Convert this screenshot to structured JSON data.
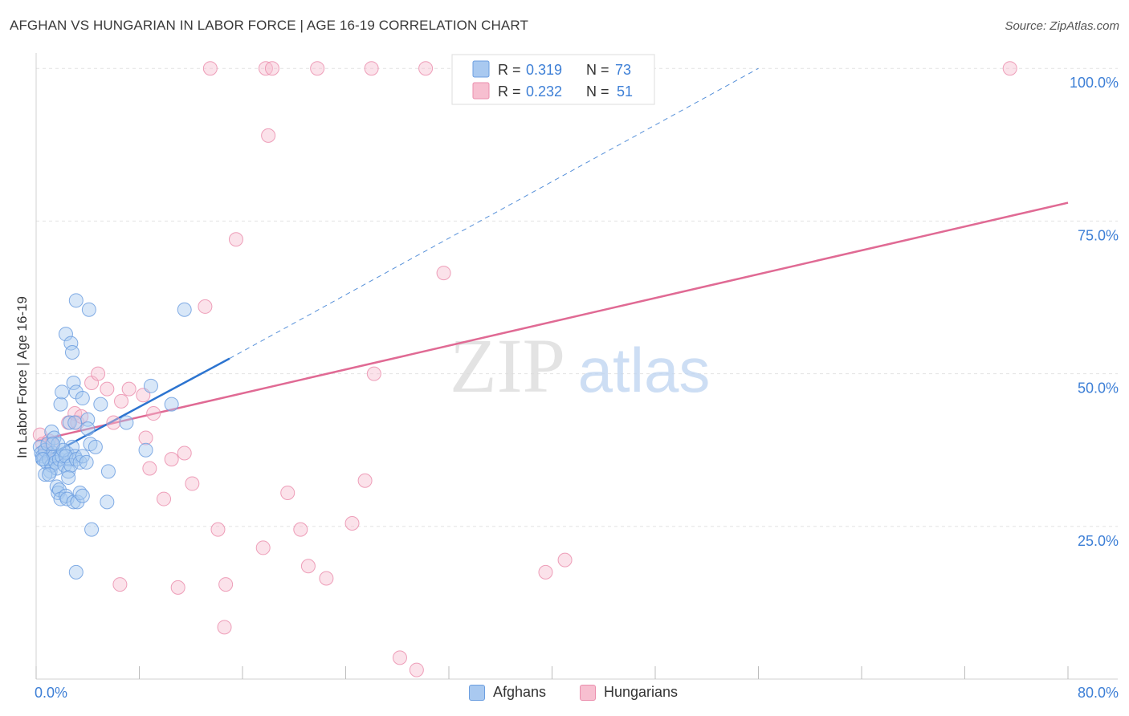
{
  "title": "AFGHAN VS HUNGARIAN IN LABOR FORCE | AGE 16-19 CORRELATION CHART",
  "source": "Source: ZipAtlas.com",
  "watermark": {
    "zip": "ZIP",
    "atlas": "atlas"
  },
  "legend_top": [
    {
      "r_label": "R =",
      "r_value": "0.319",
      "n_label": "N =",
      "n_value": "73"
    },
    {
      "r_label": "R =",
      "r_value": "0.232",
      "n_label": "N =",
      "n_value": "51"
    }
  ],
  "legend_bottom": [
    {
      "label": "Afghans"
    },
    {
      "label": "Hungarians"
    }
  ],
  "colors": {
    "afghan_fill": "#a9c9f0",
    "afghan_stroke": "#6d9fe0",
    "afghan_line": "#2c74d0",
    "hungarian_fill": "#f7bfd0",
    "hungarian_stroke": "#eb8fae",
    "hungarian_line": "#e06a94",
    "tick_blue": "#3d7fd6",
    "grid": "#e3e3e3"
  },
  "chart_data": {
    "type": "scatter",
    "title": "AFGHAN VS HUNGARIAN IN LABOR FORCE | AGE 16-19 CORRELATION CHART",
    "xlabel": "",
    "ylabel": "In Labor Force | Age 16-19",
    "xlim": [
      0,
      80
    ],
    "ylim": [
      0,
      102
    ],
    "x_tick_labels": [
      "0.0%",
      "80.0%"
    ],
    "y_ticks": [
      25,
      50,
      75,
      100
    ],
    "y_tick_labels": [
      "25.0%",
      "50.0%",
      "75.0%",
      "100.0%"
    ],
    "grid": true,
    "series": [
      {
        "name": "Afghans",
        "R": 0.319,
        "N": 73,
        "trend": {
          "x0": 0.0,
          "y0": 35.5,
          "x1": 15.0,
          "y1": 52.5,
          "extend_x1": 56.0,
          "extend_y1": 100.0
        },
        "points": [
          [
            0.3,
            38.0
          ],
          [
            0.4,
            37.0
          ],
          [
            0.5,
            36.5
          ],
          [
            0.6,
            36.0
          ],
          [
            0.7,
            37.5
          ],
          [
            0.8,
            35.5
          ],
          [
            0.9,
            38.5
          ],
          [
            1.0,
            36.0
          ],
          [
            1.1,
            34.0
          ],
          [
            1.2,
            35.0
          ],
          [
            1.3,
            37.0
          ],
          [
            1.4,
            36.5
          ],
          [
            1.5,
            35.5
          ],
          [
            1.6,
            34.5
          ],
          [
            1.8,
            36.0
          ],
          [
            2.0,
            36.5
          ],
          [
            2.2,
            35.0
          ],
          [
            2.4,
            37.0
          ],
          [
            2.6,
            36.0
          ],
          [
            2.8,
            38.0
          ],
          [
            3.0,
            36.5
          ],
          [
            0.5,
            36.0
          ],
          [
            0.7,
            33.5
          ],
          [
            1.0,
            33.5
          ],
          [
            1.2,
            40.5
          ],
          [
            1.4,
            39.5
          ],
          [
            1.7,
            38.5
          ],
          [
            2.1,
            37.5
          ],
          [
            2.3,
            36.5
          ],
          [
            2.5,
            34.0
          ],
          [
            2.7,
            35.0
          ],
          [
            3.1,
            36.0
          ],
          [
            3.4,
            35.5
          ],
          [
            3.6,
            36.5
          ],
          [
            3.9,
            35.5
          ],
          [
            4.2,
            38.5
          ],
          [
            4.6,
            38.0
          ],
          [
            1.9,
            45.0
          ],
          [
            2.0,
            47.0
          ],
          [
            2.9,
            48.5
          ],
          [
            3.1,
            47.0
          ],
          [
            2.3,
            56.5
          ],
          [
            2.7,
            55.0
          ],
          [
            2.8,
            53.5
          ],
          [
            3.1,
            62.0
          ],
          [
            4.1,
            60.5
          ],
          [
            2.6,
            42.0
          ],
          [
            3.0,
            42.0
          ],
          [
            3.6,
            46.0
          ],
          [
            4.0,
            42.5
          ],
          [
            5.0,
            45.0
          ],
          [
            7.0,
            42.0
          ],
          [
            8.5,
            37.5
          ],
          [
            8.9,
            48.0
          ],
          [
            10.5,
            45.0
          ],
          [
            11.5,
            60.5
          ],
          [
            1.6,
            31.5
          ],
          [
            1.7,
            30.5
          ],
          [
            1.8,
            31.0
          ],
          [
            1.9,
            29.5
          ],
          [
            2.3,
            30.0
          ],
          [
            2.4,
            29.5
          ],
          [
            2.5,
            33.0
          ],
          [
            2.9,
            29.0
          ],
          [
            3.2,
            29.0
          ],
          [
            3.4,
            30.5
          ],
          [
            3.6,
            30.0
          ],
          [
            5.6,
            34.0
          ],
          [
            5.5,
            29.0
          ],
          [
            4.3,
            24.5
          ],
          [
            3.1,
            17.5
          ],
          [
            4.0,
            41.0
          ],
          [
            1.3,
            38.5
          ]
        ]
      },
      {
        "name": "Hungarians",
        "R": 0.232,
        "N": 51,
        "trend": {
          "x0": 0.0,
          "y0": 39.0,
          "x1": 80.0,
          "y1": 78.0
        },
        "points": [
          [
            0.3,
            40.0
          ],
          [
            0.5,
            38.5
          ],
          [
            0.7,
            37.0
          ],
          [
            1.0,
            39.0
          ],
          [
            1.2,
            38.5
          ],
          [
            2.5,
            42.0
          ],
          [
            3.0,
            43.5
          ],
          [
            3.2,
            42.0
          ],
          [
            3.5,
            43.0
          ],
          [
            4.3,
            48.5
          ],
          [
            4.8,
            50.0
          ],
          [
            5.5,
            47.5
          ],
          [
            6.0,
            42.0
          ],
          [
            6.6,
            45.5
          ],
          [
            7.2,
            47.5
          ],
          [
            8.3,
            46.5
          ],
          [
            8.5,
            39.5
          ],
          [
            9.1,
            43.5
          ],
          [
            8.8,
            34.5
          ],
          [
            9.9,
            29.5
          ],
          [
            10.5,
            36.0
          ],
          [
            11.5,
            37.0
          ],
          [
            12.1,
            32.0
          ],
          [
            13.1,
            61.0
          ],
          [
            14.1,
            24.5
          ],
          [
            14.6,
            8.5
          ],
          [
            14.7,
            15.5
          ],
          [
            17.6,
            21.5
          ],
          [
            19.5,
            30.5
          ],
          [
            20.5,
            24.5
          ],
          [
            21.1,
            18.5
          ],
          [
            22.5,
            16.5
          ],
          [
            24.5,
            25.5
          ],
          [
            25.5,
            32.5
          ],
          [
            26.2,
            50.0
          ],
          [
            28.2,
            3.5
          ],
          [
            29.5,
            1.5
          ],
          [
            31.6,
            66.5
          ],
          [
            39.5,
            17.5
          ],
          [
            41.0,
            19.5
          ],
          [
            15.5,
            72.0
          ],
          [
            18.0,
            89.0
          ],
          [
            13.5,
            100.0
          ],
          [
            17.8,
            100.0
          ],
          [
            18.3,
            100.0
          ],
          [
            21.8,
            100.0
          ],
          [
            26.0,
            100.0
          ],
          [
            30.2,
            100.0
          ],
          [
            75.5,
            100.0
          ],
          [
            11.0,
            15.0
          ],
          [
            6.5,
            15.5
          ]
        ]
      }
    ]
  }
}
